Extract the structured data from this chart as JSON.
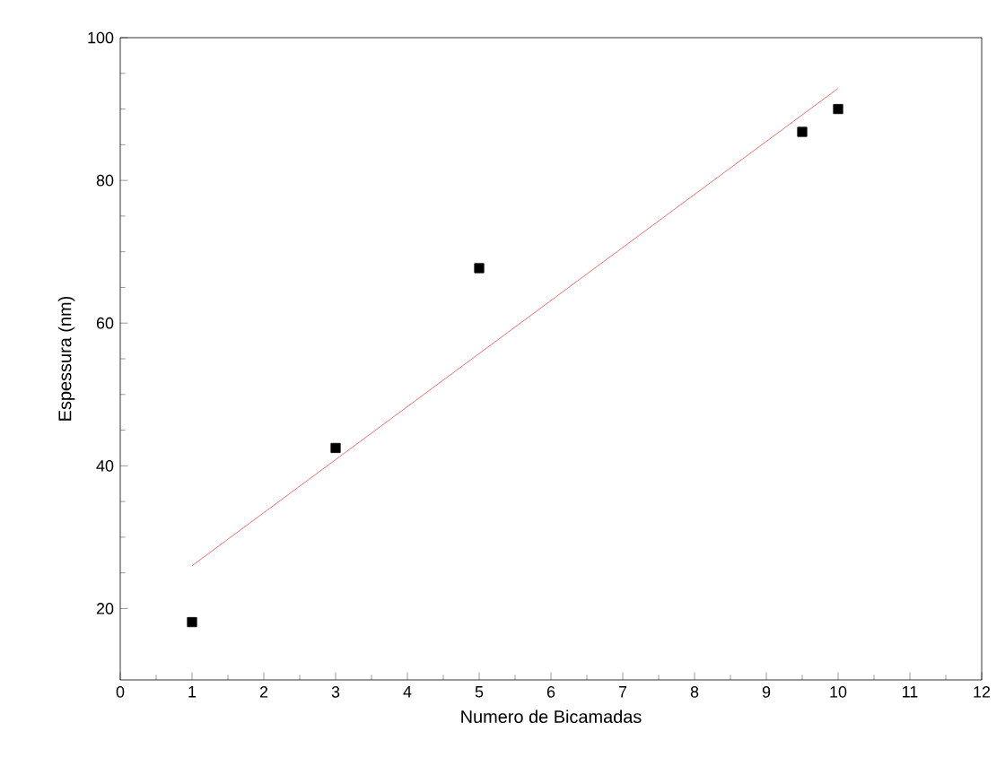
{
  "chart_data": {
    "type": "scatter",
    "xlabel": "Numero de Bicamadas",
    "ylabel": "Espessura (nm)",
    "xlim": [
      0,
      12
    ],
    "ylim": [
      10,
      100
    ],
    "xticks": [
      0,
      1,
      2,
      3,
      4,
      5,
      6,
      7,
      8,
      9,
      10,
      11,
      12
    ],
    "yticks": [
      20,
      40,
      60,
      80,
      100
    ],
    "grid": false,
    "series": [
      {
        "color": "#000000",
        "marker": "square",
        "x": [
          1,
          3,
          5,
          9.5,
          10
        ],
        "values": [
          18.1,
          42.5,
          67.7,
          86.8,
          90
        ]
      },
      {
        "type": "line",
        "color": "#e87070",
        "marker": "none",
        "x": [
          1,
          10
        ],
        "values": [
          26,
          92.9
        ]
      }
    ]
  }
}
